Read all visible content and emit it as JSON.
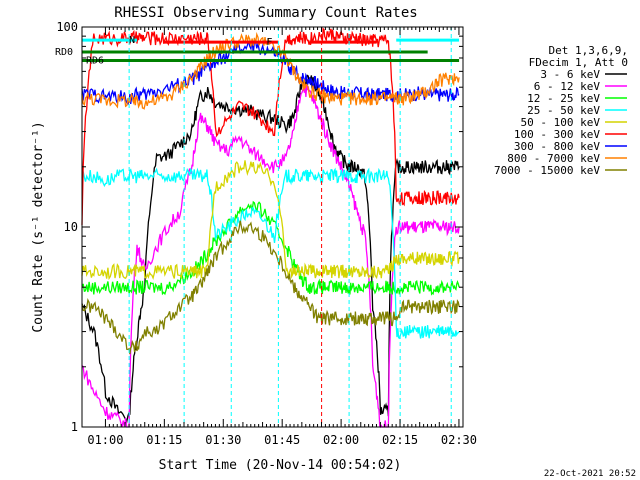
{
  "chart_data": {
    "type": "line",
    "title": "RHESSI Observing Summary Count Rates",
    "xlabel": "Start Time (20-Nov-14 00:54:02)",
    "ylabel": "Count Rate (s⁻¹ detector⁻¹)",
    "yscale": "log",
    "xlim": [
      "00:54",
      "02:31"
    ],
    "ylim": [
      1,
      100
    ],
    "x_ticks": [
      "01:00",
      "01:15",
      "01:30",
      "01:45",
      "02:00",
      "02:15",
      "02:30"
    ],
    "y_ticks": [
      "1",
      "10",
      "100"
    ],
    "legend_header": [
      "Det 1,3,6,9,",
      "FDecim 1, Att 0"
    ],
    "legend_placement": "right",
    "x_unit": "minutes after 00:54:02",
    "series": [
      {
        "name": "3 - 6 keV",
        "color": "#000000",
        "x": [
          0,
          3,
          6,
          9,
          12,
          14,
          16,
          19,
          22,
          25,
          28,
          30,
          32,
          34,
          37,
          40,
          43,
          46,
          49,
          52,
          54,
          56,
          58,
          60,
          62,
          64,
          66,
          68,
          70,
          72,
          74,
          76,
          78,
          80,
          82,
          84,
          86,
          88,
          90,
          92,
          94,
          96
        ],
        "y": [
          4,
          3,
          1.5,
          1.2,
          1.1,
          2.8,
          5,
          22,
          23,
          26,
          30,
          44,
          48,
          42,
          40,
          39,
          38,
          36,
          35,
          32,
          36,
          52,
          55,
          48,
          38,
          26,
          22,
          20,
          20,
          18,
          4,
          1.2,
          1.2,
          20,
          20,
          20,
          20,
          20,
          20,
          20,
          20,
          20
        ]
      },
      {
        "name": "6 - 12 keV",
        "color": "#ff00ff",
        "x": [
          0,
          3,
          6,
          9,
          12,
          14,
          16,
          19,
          22,
          25,
          28,
          30,
          32,
          34,
          37,
          40,
          43,
          46,
          49,
          52,
          54,
          56,
          58,
          60,
          62,
          64,
          66,
          68,
          70,
          72,
          74,
          76,
          78,
          80,
          82,
          84,
          86,
          88,
          90,
          92,
          94,
          96
        ],
        "y": [
          2,
          1.5,
          1.2,
          1.1,
          1,
          8,
          6,
          8,
          10,
          12,
          20,
          35,
          32,
          26,
          24,
          28,
          24,
          22,
          20,
          22,
          30,
          50,
          47,
          38,
          30,
          24,
          20,
          16,
          12,
          9,
          2,
          1,
          1,
          10,
          10,
          10,
          10,
          10,
          10,
          10,
          10,
          10
        ]
      },
      {
        "name": "12 - 25 keV",
        "color": "#00ff00",
        "x": [
          0,
          3,
          6,
          9,
          12,
          14,
          16,
          19,
          22,
          25,
          28,
          30,
          32,
          34,
          37,
          40,
          43,
          46,
          49,
          52,
          54,
          56,
          58,
          60,
          62,
          64,
          66,
          68,
          70,
          72,
          74,
          76,
          78,
          80,
          82,
          84,
          86,
          88,
          90,
          92,
          94,
          96
        ],
        "y": [
          5,
          5,
          5,
          5,
          5,
          5,
          5,
          5,
          5,
          5.5,
          6,
          6.5,
          7.5,
          8.5,
          10,
          12,
          13,
          12,
          10,
          8,
          6.5,
          5.5,
          5,
          5,
          5,
          5,
          5,
          5,
          5,
          5,
          5,
          5,
          5,
          5,
          5,
          5,
          5,
          5,
          5,
          5,
          5,
          5
        ]
      },
      {
        "name": "25 - 50 keV",
        "color": "#00ffff",
        "x": [
          0,
          3,
          6,
          9,
          12,
          14,
          16,
          19,
          22,
          25,
          28,
          30,
          32,
          34,
          37,
          40,
          43,
          46,
          49,
          52,
          54,
          56,
          58,
          60,
          62,
          64,
          66,
          68,
          70,
          72,
          74,
          76,
          78,
          80,
          82,
          84,
          86,
          88,
          90,
          92,
          94,
          96
        ],
        "y": [
          18,
          18,
          17,
          18,
          18,
          18,
          18,
          18,
          18,
          18,
          18,
          18,
          18,
          9,
          10,
          11,
          12,
          11,
          9,
          18,
          18,
          18,
          18,
          18,
          18,
          18,
          18,
          18,
          18,
          18,
          18,
          18,
          18,
          3,
          3,
          3,
          3,
          3,
          3,
          3,
          3,
          3
        ]
      },
      {
        "name": "50 - 100 keV",
        "color": "#d4d400",
        "x": [
          0,
          3,
          6,
          9,
          12,
          14,
          16,
          19,
          22,
          25,
          28,
          30,
          32,
          34,
          37,
          40,
          43,
          46,
          49,
          52,
          54,
          56,
          58,
          60,
          62,
          64,
          66,
          68,
          70,
          72,
          74,
          76,
          78,
          80,
          82,
          84,
          86,
          88,
          90,
          92,
          94,
          96
        ],
        "y": [
          6,
          6,
          6,
          6,
          6,
          6,
          6,
          6,
          6,
          6,
          6,
          6,
          6,
          16,
          18,
          20,
          20,
          19,
          17,
          6,
          6,
          6,
          6,
          6,
          6,
          6,
          6,
          6,
          6,
          6,
          6,
          6,
          6,
          7,
          7,
          7,
          7,
          7,
          7,
          7,
          7,
          7
        ]
      },
      {
        "name": "100 - 300 keV",
        "color": "#ff0000",
        "x": [
          0,
          3,
          6,
          9,
          12,
          14,
          16,
          19,
          22,
          25,
          28,
          30,
          32,
          34,
          37,
          40,
          43,
          46,
          49,
          52,
          54,
          56,
          58,
          60,
          62,
          64,
          66,
          68,
          70,
          72,
          74,
          76,
          78,
          80,
          82,
          84,
          86,
          88,
          90,
          92,
          94,
          96
        ],
        "y": [
          11,
          88,
          88,
          88,
          88,
          88,
          88,
          88,
          88,
          88,
          88,
          88,
          88,
          30,
          34,
          40,
          38,
          34,
          30,
          88,
          88,
          88,
          88,
          90,
          92,
          92,
          88,
          88,
          88,
          86,
          86,
          86,
          86,
          14,
          14,
          14,
          14,
          14,
          14,
          14,
          14,
          14
        ]
      },
      {
        "name": "300 - 800 keV",
        "color": "#0000ff",
        "x": [
          0,
          3,
          6,
          9,
          12,
          14,
          16,
          19,
          22,
          25,
          28,
          30,
          32,
          34,
          37,
          40,
          43,
          46,
          49,
          52,
          54,
          56,
          58,
          60,
          62,
          64,
          66,
          68,
          70,
          72,
          74,
          76,
          78,
          80,
          82,
          84,
          86,
          88,
          90,
          92,
          94,
          96
        ],
        "y": [
          46,
          46,
          45,
          45,
          44,
          46,
          46,
          48,
          50,
          52,
          55,
          58,
          63,
          66,
          72,
          78,
          80,
          78,
          74,
          66,
          60,
          56,
          55,
          52,
          50,
          48,
          47,
          47,
          47,
          46,
          46,
          46,
          46,
          46,
          46,
          46,
          47,
          46,
          46,
          46,
          46,
          46
        ]
      },
      {
        "name": "800 - 7000 keV",
        "color": "#ff8000",
        "x": [
          0,
          3,
          6,
          9,
          12,
          14,
          16,
          19,
          22,
          25,
          28,
          30,
          32,
          34,
          37,
          40,
          43,
          46,
          49,
          52,
          54,
          56,
          58,
          60,
          62,
          64,
          66,
          68,
          70,
          72,
          74,
          76,
          78,
          80,
          82,
          84,
          86,
          88,
          90,
          92,
          94,
          96
        ],
        "y": [
          44,
          44,
          43,
          43,
          43,
          42,
          42,
          43,
          45,
          50,
          56,
          62,
          70,
          76,
          82,
          85,
          86,
          84,
          78,
          70,
          60,
          52,
          48,
          46,
          45,
          44,
          44,
          44,
          44,
          44,
          44,
          44,
          44,
          44,
          44,
          45,
          46,
          48,
          52,
          55,
          56,
          56
        ]
      },
      {
        "name": "7000 - 15000 keV",
        "color": "#808000",
        "x": [
          0,
          3,
          6,
          9,
          12,
          14,
          16,
          19,
          22,
          25,
          28,
          30,
          32,
          34,
          37,
          40,
          43,
          46,
          49,
          52,
          54,
          56,
          58,
          60,
          62,
          64,
          66,
          68,
          70,
          72,
          74,
          76,
          78,
          80,
          82,
          84,
          86,
          88,
          90,
          92,
          94,
          96
        ],
        "y": [
          4,
          4,
          3.5,
          3,
          2.5,
          2.5,
          3,
          3,
          3.5,
          4,
          4.5,
          5,
          6,
          7,
          8.5,
          10,
          10,
          9,
          7.5,
          6,
          5,
          4.5,
          4,
          3.5,
          3.5,
          3.5,
          3.5,
          3.5,
          3.5,
          3.5,
          3.5,
          3.5,
          3.5,
          3.5,
          4,
          4,
          4,
          4,
          4,
          4,
          4,
          4
        ]
      }
    ],
    "flags": [
      {
        "label": "N",
        "color": "#00ffff",
        "y": 86,
        "segments": [
          [
            0,
            14
          ],
          [
            80,
            96
          ]
        ]
      },
      {
        "label": "F",
        "color": "#ff0000",
        "y": 84,
        "segments": [
          [
            21,
            50
          ],
          [
            58,
            75
          ]
        ]
      },
      {
        "label": "RD0",
        "color": "#008000",
        "y": 75,
        "segments": [
          [
            0,
            88
          ]
        ]
      },
      {
        "label": "RD6",
        "color": "#008000",
        "y": 68,
        "segments": [
          [
            0,
            96
          ]
        ]
      }
    ],
    "vlines": [
      {
        "x": 12,
        "color": "#00ffff"
      },
      {
        "x": 26,
        "color": "#00ffff"
      },
      {
        "x": 38,
        "color": "#00ffff"
      },
      {
        "x": 50,
        "color": "#00ffff"
      },
      {
        "x": 61,
        "color": "#ff0000"
      },
      {
        "x": 68,
        "color": "#00ffff"
      },
      {
        "x": 81,
        "color": "#00ffff"
      },
      {
        "x": 94,
        "color": "#00ffff"
      }
    ],
    "grid": false,
    "footer": "22-Oct-2021 20:52"
  }
}
